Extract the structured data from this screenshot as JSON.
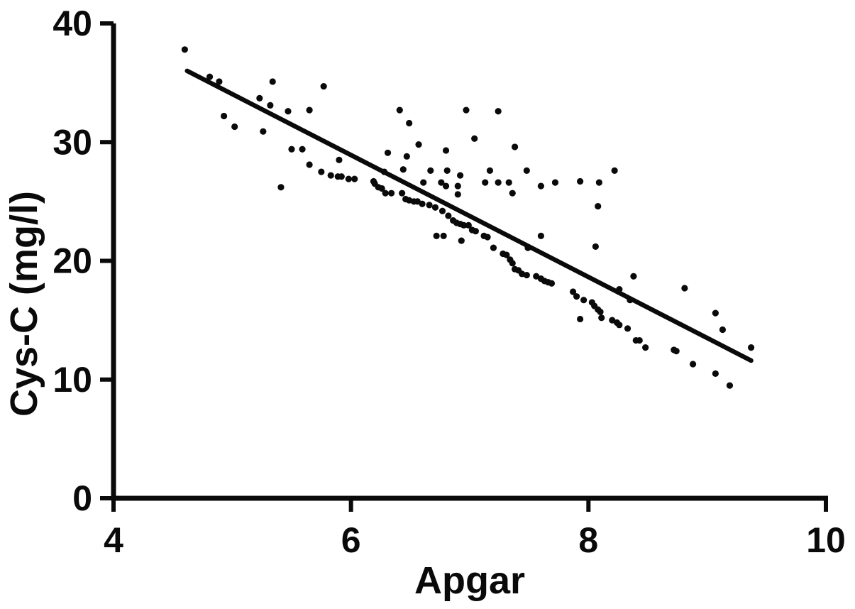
{
  "figure": {
    "background": "#ffffff",
    "foreground": "#0a0a0a"
  },
  "chart_data": {
    "type": "scatter",
    "title": "",
    "xlabel": "Apgar",
    "ylabel": "Cys-C (mg/l)",
    "xlim": [
      4,
      10
    ],
    "ylim": [
      0,
      40
    ],
    "x_ticks": [
      "4",
      "6",
      "8",
      "10"
    ],
    "x_tick_values": [
      4,
      6,
      8,
      10
    ],
    "y_ticks": [
      "0",
      "10",
      "20",
      "30",
      "40"
    ],
    "y_tick_values": [
      0,
      10,
      20,
      30,
      40
    ],
    "grid": false,
    "legend": "none",
    "marker_color": "#0a0a0a",
    "line_color": "#0a0a0a",
    "regression_line": {
      "x1": 4.62,
      "y1": 36.0,
      "x2": 9.37,
      "y2": 11.6
    },
    "points": [
      [
        4.6,
        37.8
      ],
      [
        4.81,
        35.5
      ],
      [
        4.89,
        35.1
      ],
      [
        5.34,
        35.1
      ],
      [
        5.77,
        34.7
      ],
      [
        5.23,
        33.7
      ],
      [
        5.32,
        33.1
      ],
      [
        5.47,
        32.6
      ],
      [
        5.65,
        32.7
      ],
      [
        4.93,
        32.2
      ],
      [
        5.02,
        31.3
      ],
      [
        5.26,
        30.9
      ],
      [
        5.5,
        29.4
      ],
      [
        5.59,
        29.4
      ],
      [
        5.9,
        28.5
      ],
      [
        5.65,
        28.1
      ],
      [
        5.75,
        27.5
      ],
      [
        5.83,
        27.2
      ],
      [
        5.89,
        27.1
      ],
      [
        5.92,
        27.1
      ],
      [
        5.98,
        26.9
      ],
      [
        6.03,
        26.9
      ],
      [
        5.41,
        26.2
      ],
      [
        6.41,
        32.7
      ],
      [
        6.97,
        32.7
      ],
      [
        7.24,
        32.6
      ],
      [
        6.49,
        31.6
      ],
      [
        7.04,
        30.3
      ],
      [
        6.57,
        29.8
      ],
      [
        7.38,
        29.6
      ],
      [
        6.31,
        29.1
      ],
      [
        6.8,
        29.3
      ],
      [
        6.47,
        28.8
      ],
      [
        6.44,
        27.7
      ],
      [
        6.67,
        27.6
      ],
      [
        6.81,
        27.6
      ],
      [
        7.17,
        27.6
      ],
      [
        7.48,
        27.6
      ],
      [
        8.22,
        27.6
      ],
      [
        6.92,
        27.2
      ],
      [
        6.28,
        27.5
      ],
      [
        6.19,
        26.7
      ],
      [
        6.2,
        26.5
      ],
      [
        6.23,
        26.2
      ],
      [
        6.26,
        26.1
      ],
      [
        6.29,
        25.7
      ],
      [
        6.34,
        25.7
      ],
      [
        6.43,
        25.7
      ],
      [
        6.46,
        25.2
      ],
      [
        6.61,
        26.6
      ],
      [
        6.76,
        26.6
      ],
      [
        6.8,
        26.3
      ],
      [
        6.9,
        26.3
      ],
      [
        6.9,
        25.6
      ],
      [
        7.13,
        26.6
      ],
      [
        7.24,
        26.6
      ],
      [
        7.33,
        26.6
      ],
      [
        7.72,
        26.6
      ],
      [
        7.6,
        26.3
      ],
      [
        7.93,
        26.7
      ],
      [
        8.09,
        26.6
      ],
      [
        7.36,
        25.7
      ],
      [
        6.49,
        25.1
      ],
      [
        6.53,
        25.0
      ],
      [
        6.56,
        25.0
      ],
      [
        6.6,
        24.8
      ],
      [
        6.66,
        24.7
      ],
      [
        6.71,
        24.5
      ],
      [
        6.77,
        24.2
      ],
      [
        6.82,
        23.8
      ],
      [
        6.86,
        23.4
      ],
      [
        6.89,
        23.2
      ],
      [
        6.92,
        23.1
      ],
      [
        6.95,
        23.0
      ],
      [
        6.99,
        23.0
      ],
      [
        7.02,
        22.6
      ],
      [
        7.05,
        22.5
      ],
      [
        6.72,
        22.1
      ],
      [
        6.78,
        22.1
      ],
      [
        6.93,
        21.7
      ],
      [
        7.12,
        22.1
      ],
      [
        7.15,
        22.0
      ],
      [
        7.2,
        21.1
      ],
      [
        7.28,
        20.6
      ],
      [
        7.31,
        20.5
      ],
      [
        7.34,
        20.1
      ],
      [
        7.36,
        19.8
      ],
      [
        7.38,
        19.3
      ],
      [
        7.41,
        19.2
      ],
      [
        7.44,
        18.9
      ],
      [
        7.48,
        18.8
      ],
      [
        7.56,
        18.7
      ],
      [
        7.6,
        18.5
      ],
      [
        7.63,
        18.3
      ],
      [
        7.66,
        18.2
      ],
      [
        7.69,
        18.1
      ],
      [
        7.6,
        22.1
      ],
      [
        7.49,
        21.1
      ],
      [
        8.08,
        24.6
      ],
      [
        8.06,
        21.2
      ],
      [
        8.38,
        18.7
      ],
      [
        8.26,
        17.6
      ],
      [
        8.35,
        16.7
      ],
      [
        8.81,
        17.7
      ],
      [
        7.87,
        17.4
      ],
      [
        7.9,
        17.0
      ],
      [
        7.96,
        16.7
      ],
      [
        8.03,
        16.5
      ],
      [
        8.05,
        16.2
      ],
      [
        8.08,
        15.9
      ],
      [
        8.1,
        15.7
      ],
      [
        8.11,
        15.2
      ],
      [
        7.93,
        15.1
      ],
      [
        8.2,
        15.0
      ],
      [
        8.24,
        14.8
      ],
      [
        8.26,
        14.6
      ],
      [
        8.33,
        14.3
      ],
      [
        8.4,
        13.3
      ],
      [
        8.43,
        13.3
      ],
      [
        8.48,
        12.7
      ],
      [
        8.72,
        12.5
      ],
      [
        8.74,
        12.4
      ],
      [
        9.07,
        15.6
      ],
      [
        9.13,
        14.2
      ],
      [
        8.88,
        11.3
      ],
      [
        9.07,
        10.5
      ],
      [
        9.19,
        9.5
      ],
      [
        9.37,
        12.7
      ]
    ]
  }
}
